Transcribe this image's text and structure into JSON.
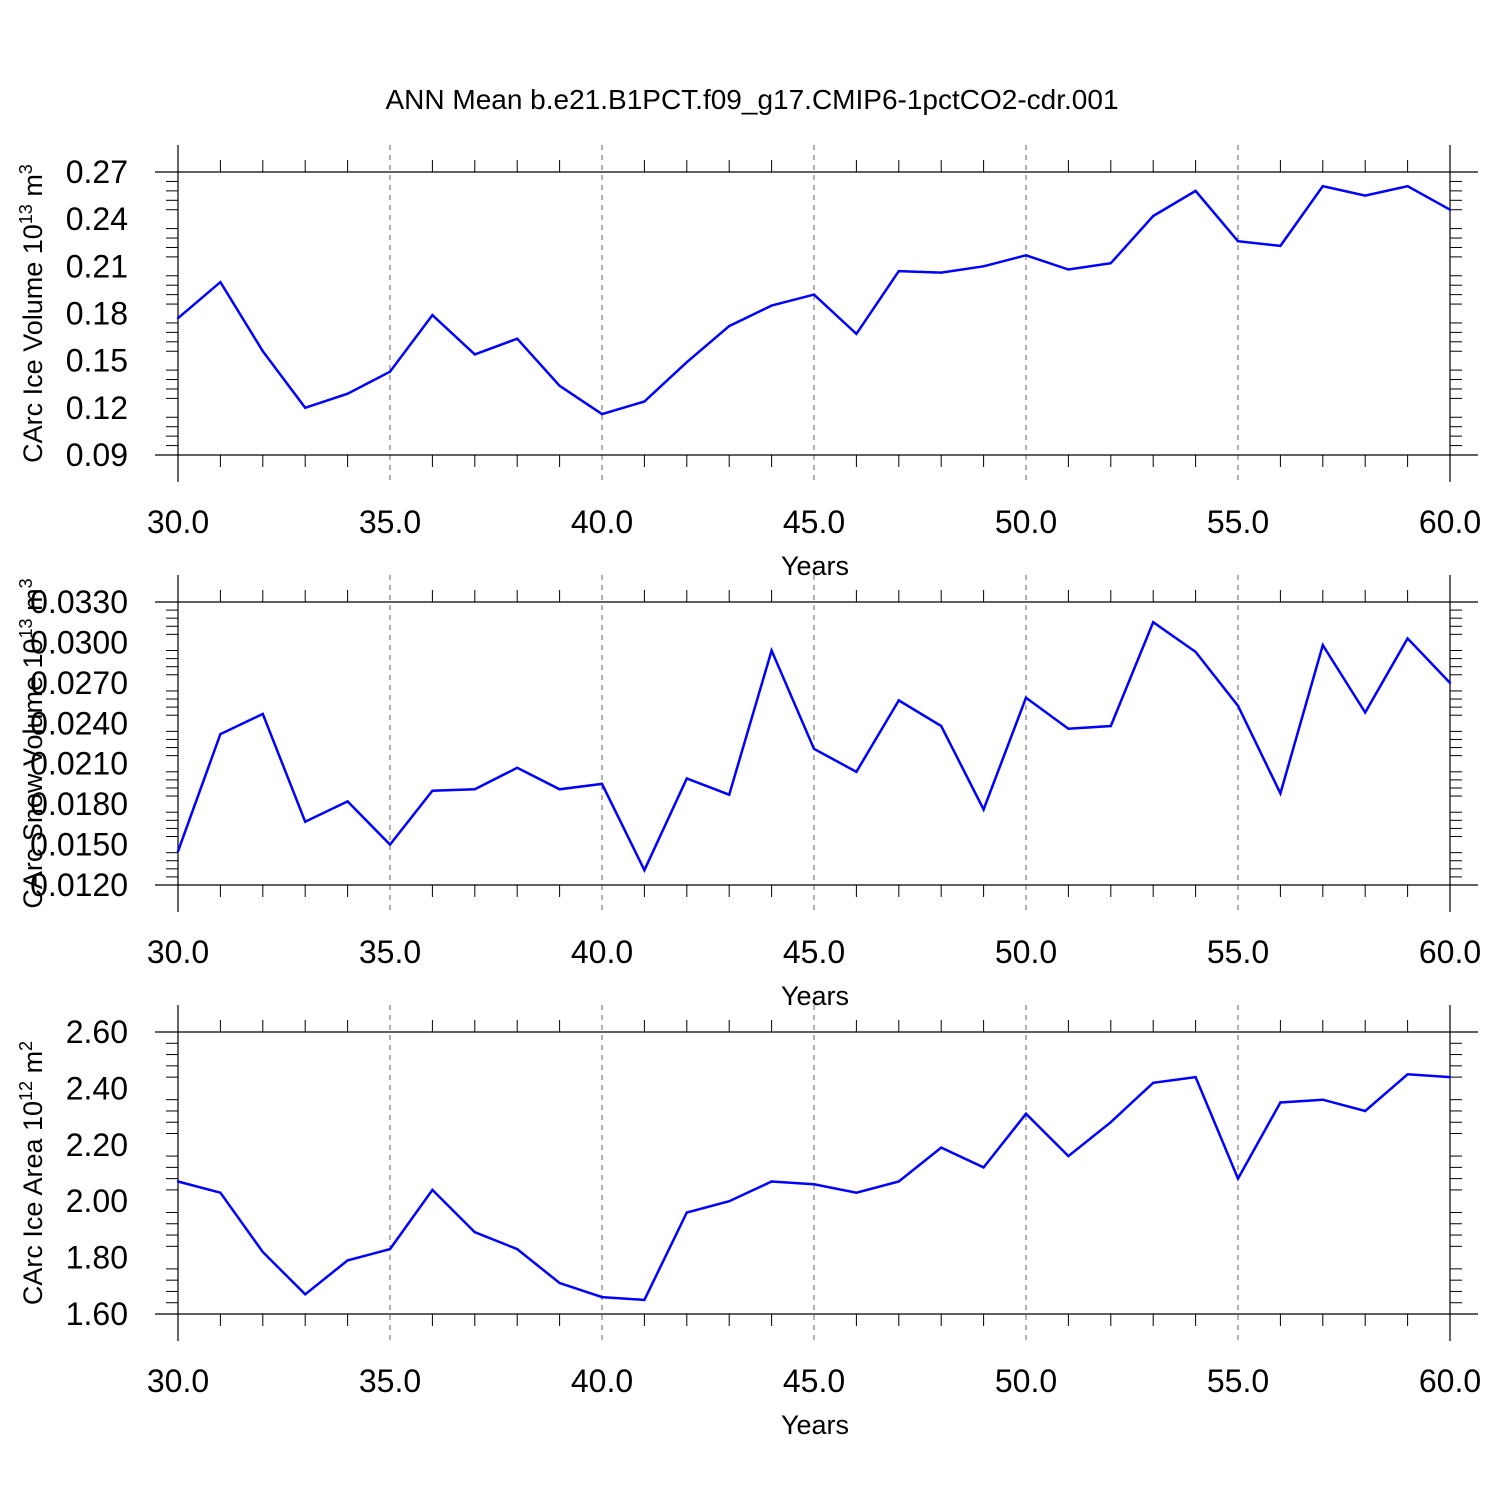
{
  "title": "ANN Mean b.e21.B1PCT.f09_g17.CMIP6-1pctCO2-cdr.001",
  "chart_data": [
    {
      "type": "line",
      "ylabel": "CArc Ice Volume 10",
      "ylabel_exp": "13",
      "ylabel_unit": " m",
      "ylabel_unit_exp": "3",
      "xlabel": "Years",
      "xlim": [
        30,
        60
      ],
      "ylim": [
        0.09,
        0.27
      ],
      "xticks": [
        "30.0",
        "35.0",
        "40.0",
        "45.0",
        "50.0",
        "55.0",
        "60.0"
      ],
      "yticks": [
        "0.09",
        "0.12",
        "0.15",
        "0.18",
        "0.21",
        "0.24",
        "0.27"
      ],
      "grid": "vertical dashed at major x ticks",
      "line_color": "#0000ff",
      "x": [
        30,
        31,
        32,
        33,
        34,
        35,
        36,
        37,
        38,
        39,
        40,
        41,
        42,
        43,
        44,
        45,
        46,
        47,
        48,
        49,
        50,
        51,
        52,
        53,
        54,
        55,
        56,
        57,
        58,
        59,
        60
      ],
      "values": [
        0.177,
        0.2,
        0.156,
        0.12,
        0.129,
        0.143,
        0.179,
        0.154,
        0.164,
        0.134,
        0.116,
        0.124,
        0.149,
        0.172,
        0.185,
        0.192,
        0.167,
        0.207,
        0.206,
        0.21,
        0.217,
        0.208,
        0.212,
        0.242,
        0.258,
        0.226,
        0.223,
        0.261,
        0.255,
        0.261,
        0.246
      ]
    },
    {
      "type": "line",
      "ylabel": "CArc Snow Volume 10",
      "ylabel_exp": "13",
      "ylabel_unit": " m",
      "ylabel_unit_exp": "3",
      "xlabel": "Years",
      "xlim": [
        30,
        60
      ],
      "ylim": [
        0.012,
        0.033
      ],
      "xticks": [
        "30.0",
        "35.0",
        "40.0",
        "45.0",
        "50.0",
        "55.0",
        "60.0"
      ],
      "yticks": [
        "0.0120",
        "0.0150",
        "0.0180",
        "0.0210",
        "0.0240",
        "0.0270",
        "0.0300",
        "0.0330"
      ],
      "grid": "vertical dashed at major x ticks",
      "line_color": "#0000ff",
      "x": [
        30,
        31,
        32,
        33,
        34,
        35,
        36,
        37,
        38,
        39,
        40,
        41,
        42,
        43,
        44,
        45,
        46,
        47,
        48,
        49,
        50,
        51,
        52,
        53,
        54,
        55,
        56,
        57,
        58,
        59,
        60
      ],
      "values": [
        0.0145,
        0.0232,
        0.0247,
        0.0167,
        0.0182,
        0.015,
        0.019,
        0.0191,
        0.0207,
        0.0191,
        0.0195,
        0.0131,
        0.0199,
        0.0187,
        0.0294,
        0.0221,
        0.0204,
        0.0257,
        0.0238,
        0.0176,
        0.0259,
        0.0236,
        0.0238,
        0.0315,
        0.0293,
        0.0253,
        0.0188,
        0.0298,
        0.0248,
        0.0303,
        0.027
      ]
    },
    {
      "type": "line",
      "ylabel": "CArc Ice Area 10",
      "ylabel_exp": "12",
      "ylabel_unit": " m",
      "ylabel_unit_exp": "2",
      "xlabel": "Years",
      "xlim": [
        30,
        60
      ],
      "ylim": [
        1.6,
        2.6
      ],
      "xticks": [
        "30.0",
        "35.0",
        "40.0",
        "45.0",
        "50.0",
        "55.0",
        "60.0"
      ],
      "yticks": [
        "1.60",
        "1.80",
        "2.00",
        "2.20",
        "2.40",
        "2.60"
      ],
      "grid": "vertical dashed at major x ticks",
      "line_color": "#0000ff",
      "x": [
        30,
        31,
        32,
        33,
        34,
        35,
        36,
        37,
        38,
        39,
        40,
        41,
        42,
        43,
        44,
        45,
        46,
        47,
        48,
        49,
        50,
        51,
        52,
        53,
        54,
        55,
        56,
        57,
        58,
        59,
        60
      ],
      "values": [
        2.07,
        2.03,
        1.82,
        1.67,
        1.79,
        1.83,
        2.04,
        1.89,
        1.83,
        1.71,
        1.66,
        1.65,
        1.96,
        2.0,
        2.07,
        2.06,
        2.03,
        2.07,
        2.19,
        2.12,
        2.31,
        2.16,
        2.28,
        2.42,
        2.44,
        2.08,
        2.35,
        2.36,
        2.32,
        2.45,
        2.44
      ]
    }
  ]
}
